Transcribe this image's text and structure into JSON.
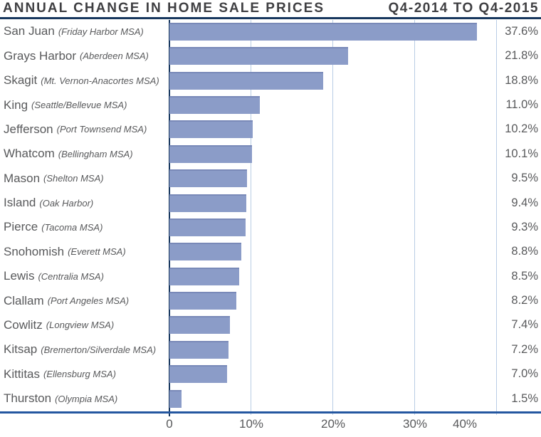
{
  "chart_data": {
    "type": "bar",
    "orientation": "horizontal",
    "title": "ANNUAL CHANGE IN HOME SALE PRICES",
    "subtitle": "Q4-2014 TO Q4-2015",
    "categories": [
      "San Juan",
      "Grays Harbor",
      "Skagit",
      "King",
      "Jefferson",
      "Whatcom",
      "Mason",
      "Island",
      "Pierce",
      "Snohomish",
      "Lewis",
      "Clallam",
      "Cowlitz",
      "Kitsap",
      "Kittitas",
      "Thurston"
    ],
    "msa_labels": [
      "(Friday Harbor MSA)",
      "(Aberdeen MSA)",
      "(Mt. Vernon-Anacortes MSA)",
      "(Seattle/Bellevue MSA)",
      "(Port Townsend MSA)",
      "(Bellingham MSA)",
      "(Shelton MSA)",
      "(Oak Harbor)",
      "(Tacoma MSA)",
      "(Everett MSA)",
      "(Centralia MSA)",
      "(Port Angeles MSA)",
      "(Longview MSA)",
      "(Bremerton/Silverdale MSA)",
      "(Ellensburg MSA)",
      "(Olympia MSA)"
    ],
    "values": [
      37.6,
      21.8,
      18.8,
      11.0,
      10.2,
      10.1,
      9.5,
      9.4,
      9.3,
      8.8,
      8.5,
      8.2,
      7.4,
      7.2,
      7.0,
      1.5
    ],
    "value_labels": [
      "37.6%",
      "21.8%",
      "18.8%",
      "11.0%",
      "10.2%",
      "10.1%",
      "9.5%",
      "9.4%",
      "9.3%",
      "8.8%",
      "8.5%",
      "8.2%",
      "7.4%",
      "7.2%",
      "7.0%",
      "1.5%"
    ],
    "xlabel": "",
    "ylabel": "",
    "xlim": [
      0,
      40
    ],
    "xticks": [
      "0",
      "10%",
      "20%",
      "30%",
      "40%"
    ],
    "grid": "vertical-major-only",
    "legend": "none",
    "colors": {
      "bar": "#8b9cc8",
      "gridline": "#b9cde5",
      "zero_axis": "#17375e",
      "title_rule": "#17375e",
      "x_axis_line": "#2457a0",
      "title_text": "#3f3f42",
      "label_text": "#58595b"
    }
  }
}
